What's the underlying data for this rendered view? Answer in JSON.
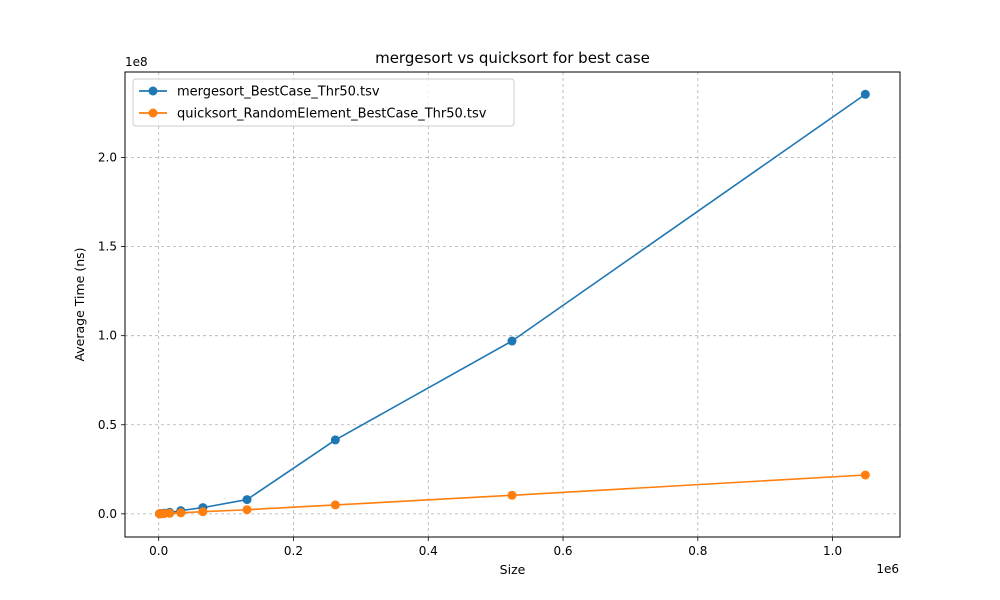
{
  "chart_data": {
    "type": "line",
    "title": "mergesort vs quicksort for best case",
    "xlabel": "Size",
    "ylabel": "Average Time (ns)",
    "x_offset_text": "1e6",
    "y_offset_text": "1e8",
    "xlim": [
      -50000,
      1100000
    ],
    "ylim": [
      -13000000,
      248000000
    ],
    "xticks": [
      0,
      200000,
      400000,
      600000,
      800000,
      1000000
    ],
    "xtick_labels": [
      "0.0",
      "0.2",
      "0.4",
      "0.6",
      "0.8",
      "1.0"
    ],
    "yticks": [
      0,
      50000000,
      100000000,
      150000000,
      200000000
    ],
    "ytick_labels": [
      "0.0",
      "0.5",
      "1.0",
      "1.5",
      "2.0"
    ],
    "grid": true,
    "legend_position": "top-left",
    "series": [
      {
        "name": "mergesort_BestCase_Thr50.tsv",
        "color": "#1f77b4",
        "x": [
          1024,
          2048,
          4096,
          8192,
          16384,
          32768,
          65536,
          131072,
          262144,
          524288,
          1048576
        ],
        "y": [
          50000,
          100000,
          200000,
          400000,
          800000,
          1800000,
          3500000,
          8000000,
          41500000,
          97000000,
          235500000
        ]
      },
      {
        "name": "quicksort_RandomElement_BestCase_Thr50.tsv",
        "color": "#ff7f0e",
        "x": [
          1024,
          2048,
          4096,
          8192,
          16384,
          32768,
          65536,
          131072,
          262144,
          524288,
          1048576
        ],
        "y": [
          20000,
          40000,
          80000,
          150000,
          300000,
          600000,
          1200000,
          2300000,
          5000000,
          10400000,
          21800000
        ]
      }
    ]
  }
}
